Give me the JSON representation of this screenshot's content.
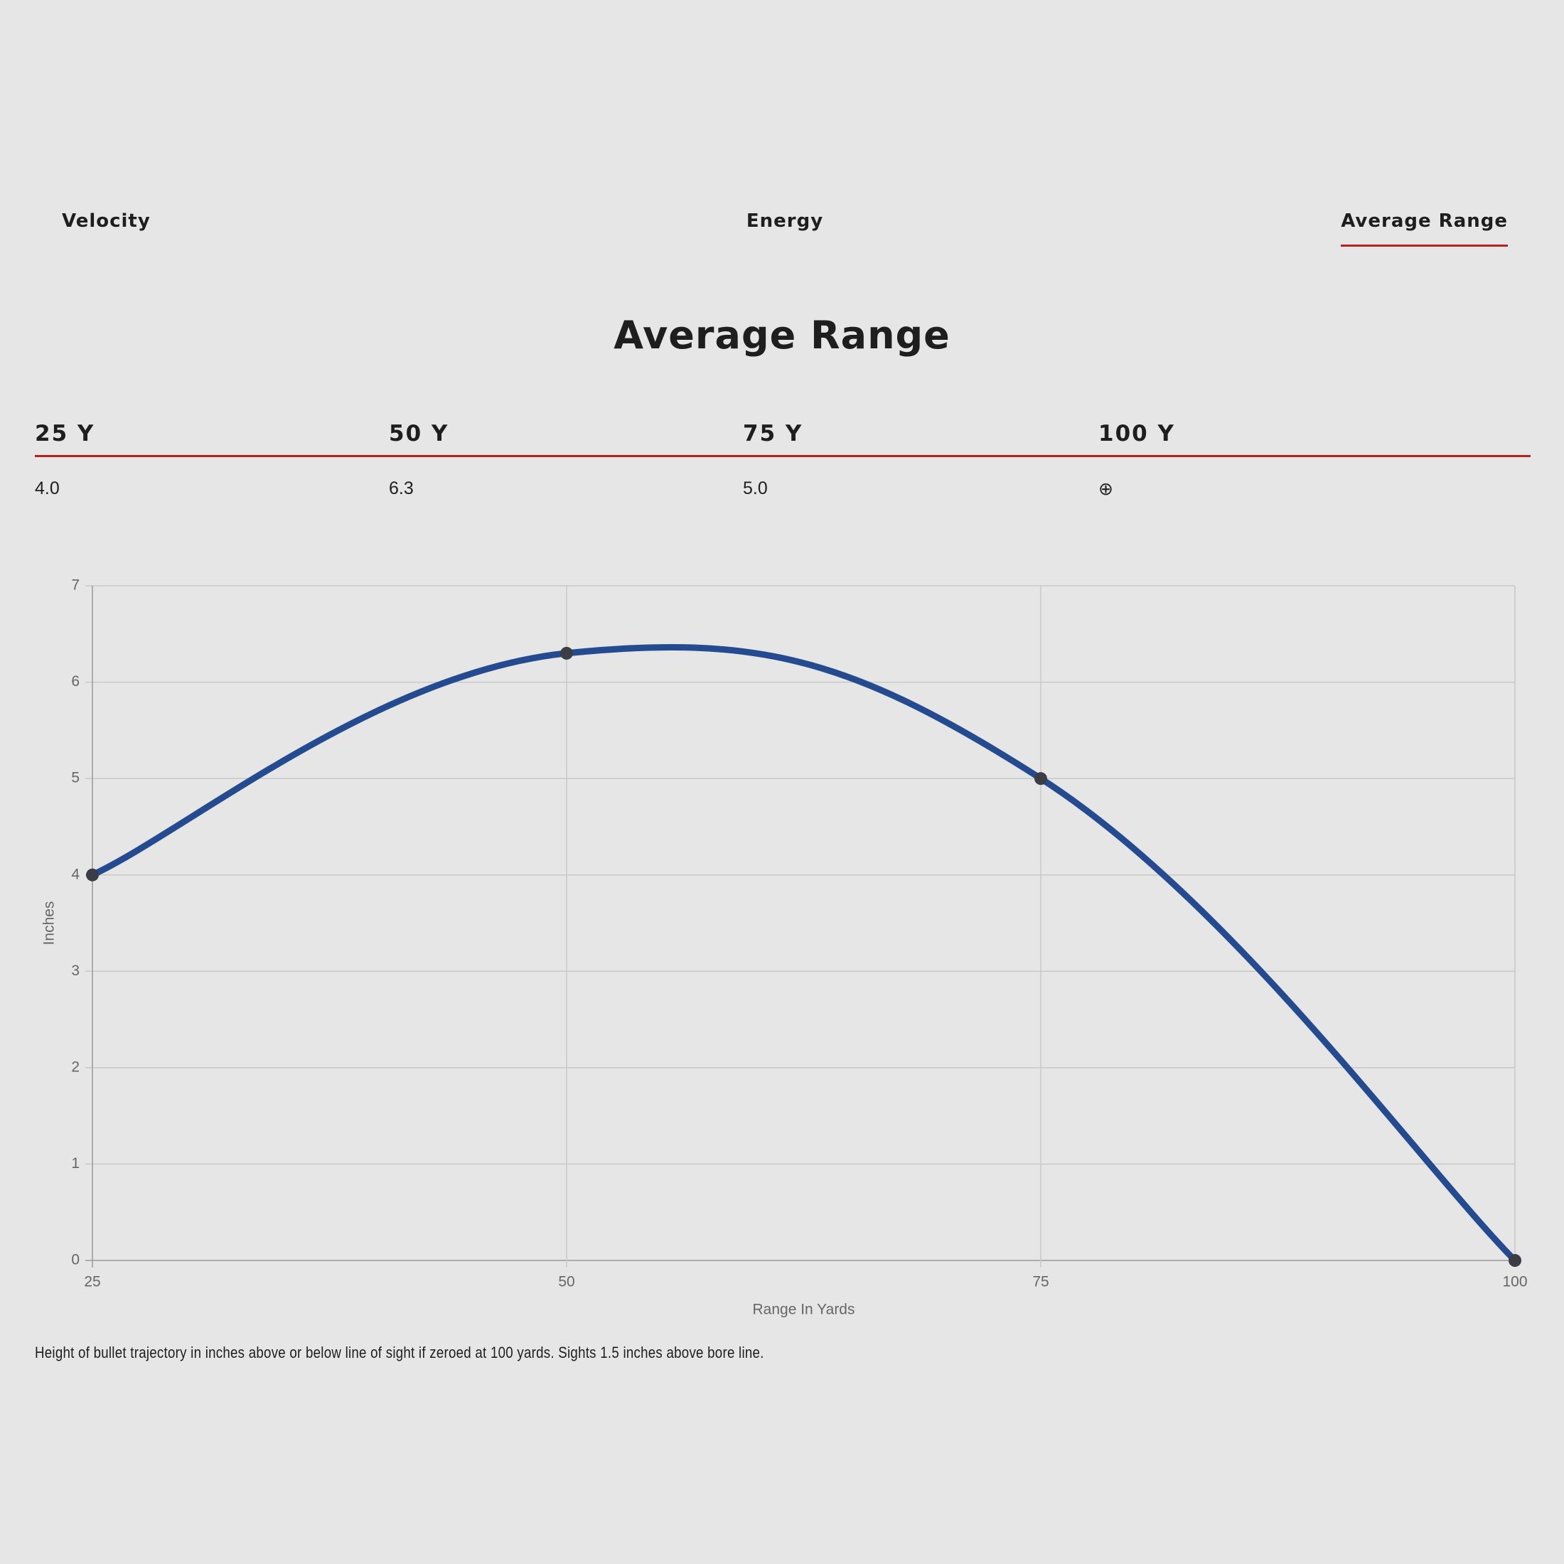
{
  "tabs": [
    "Velocity",
    "Energy",
    "Average Range"
  ],
  "active_tab": 2,
  "heading": "Average Range",
  "table": {
    "headers": [
      "25 Y",
      "50 Y",
      "75 Y",
      "100 Y"
    ],
    "rows": [
      [
        "4.0",
        "6.3",
        "5.0",
        "⊕"
      ]
    ]
  },
  "chart_data": {
    "type": "line",
    "x": [
      25,
      50,
      75,
      100
    ],
    "series": [
      {
        "name": "Average Range",
        "color": "#244a8f",
        "values": [
          4.0,
          6.3,
          5.0,
          0
        ]
      }
    ],
    "xlim": [
      25,
      100
    ],
    "xticks": [
      25,
      50,
      75,
      100
    ],
    "ylim": [
      0,
      7
    ],
    "yticks": [
      0,
      1,
      2,
      3,
      4,
      5,
      6,
      7
    ],
    "x_label": "Range In Yards",
    "y_label": "Inches",
    "grid": true
  },
  "footnote": "Height of bullet trajectory in inches above or below line of sight if zeroed at 100 yards. Sights 1.5 inches above bore line."
}
